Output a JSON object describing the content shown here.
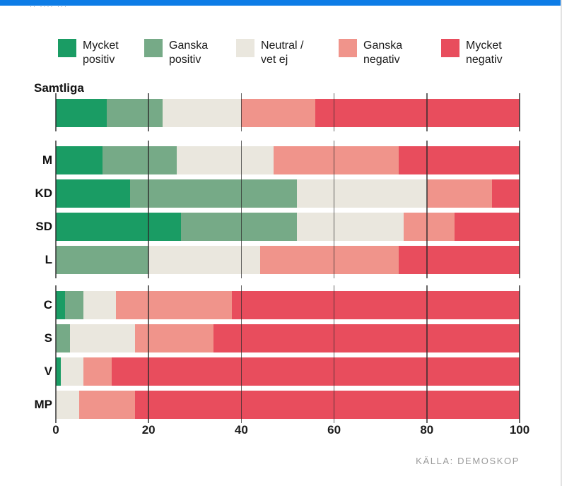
{
  "top_bar_color": "#0d7ce6",
  "top_artifact": "·· ···· ···",
  "source_note": "KÄLLA: DEMOSKOP",
  "chart_data": {
    "type": "bar",
    "stacked": true,
    "orientation": "horizontal",
    "title": "",
    "legend_position": "top",
    "grid": true,
    "xlim": [
      0,
      100
    ],
    "ticks": [
      0,
      20,
      40,
      60,
      80,
      100
    ],
    "series": [
      {
        "name": "Mycket positiv",
        "color": "#1a9c64"
      },
      {
        "name": "Ganska positiv",
        "color": "#76aa87"
      },
      {
        "name": "Neutral / vet ej",
        "color": "#eae7de"
      },
      {
        "name": "Ganska negativ",
        "color": "#f0948b"
      },
      {
        "name": "Mycket negativ",
        "color": "#e84d5d"
      }
    ],
    "groups": [
      {
        "header": "Samtliga",
        "rows": [
          {
            "label": "",
            "values": [
              11,
              12,
              17,
              16,
              44
            ]
          }
        ]
      },
      {
        "header": "",
        "rows": [
          {
            "label": "M",
            "values": [
              10,
              16,
              21,
              27,
              26
            ]
          },
          {
            "label": "KD",
            "values": [
              16,
              36,
              28,
              14,
              6
            ]
          },
          {
            "label": "SD",
            "values": [
              27,
              25,
              23,
              11,
              14
            ]
          },
          {
            "label": "L",
            "values": [
              0,
              20,
              24,
              30,
              26
            ]
          }
        ]
      },
      {
        "header": "",
        "rows": [
          {
            "label": "C",
            "values": [
              2,
              4,
              7,
              25,
              62
            ]
          },
          {
            "label": "S",
            "values": [
              0,
              3,
              14,
              17,
              66
            ]
          },
          {
            "label": "V",
            "values": [
              1,
              0,
              5,
              6,
              88
            ]
          },
          {
            "label": "MP",
            "values": [
              0,
              0,
              5,
              12,
              83
            ]
          }
        ]
      }
    ],
    "source": "KÄLLA: DEMOSKOP"
  }
}
